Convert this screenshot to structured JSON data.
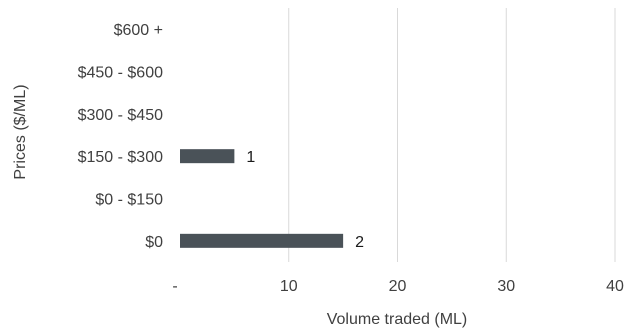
{
  "chart_data": {
    "type": "bar",
    "orientation": "horizontal",
    "categories": [
      "$0",
      "$0 - $150",
      "$150 - $300",
      "$300 - $450",
      "$450 - $600",
      "$600 +"
    ],
    "values": [
      15,
      null,
      5,
      null,
      null,
      null
    ],
    "data_labels": [
      "2",
      "",
      "1",
      "",
      "",
      ""
    ],
    "xlabel": "Volume traded (ML)",
    "ylabel": "Prices ($/ML)",
    "xlim": [
      0,
      40
    ],
    "xticks": [
      0,
      10,
      20,
      30,
      40
    ],
    "xtick_labels": [
      "-",
      "10",
      "20",
      "30",
      "40"
    ],
    "grid": "vertical",
    "bar_color": "#4a5258",
    "grid_color": "#d9d9d9",
    "legend": "none"
  }
}
